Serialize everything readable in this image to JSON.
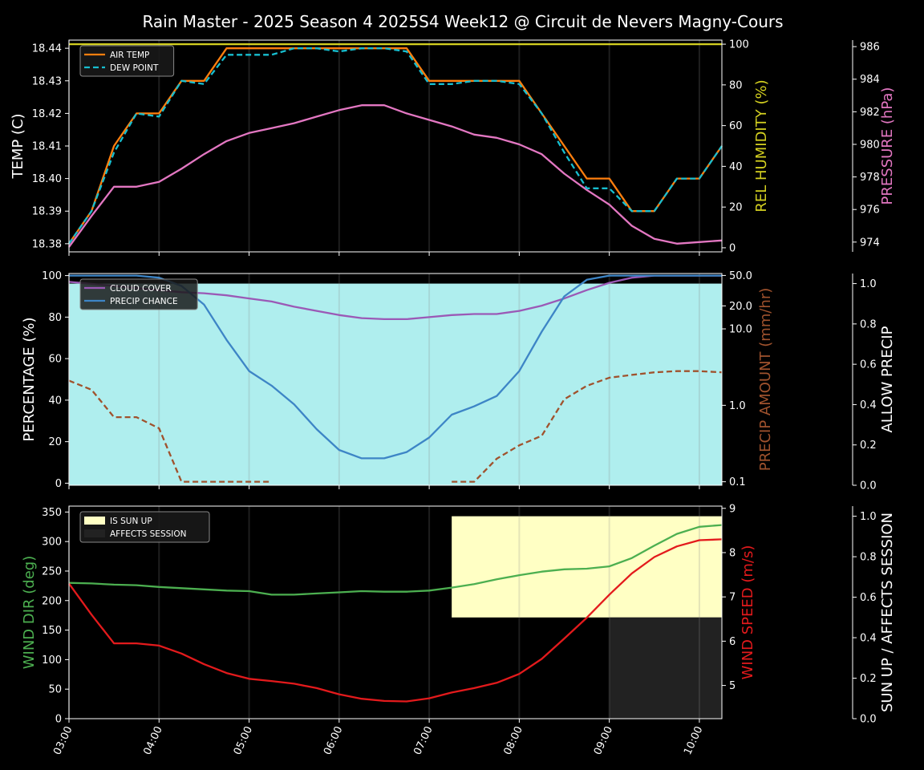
{
  "title": "Rain Master - 2025 Season 4 2025S4 Week12 @ Circuit de Nevers Magny-Cours",
  "time_ticks": [
    "03:00",
    "04:00",
    "05:00",
    "06:00",
    "07:00",
    "08:00",
    "09:00",
    "10:00"
  ],
  "chart_data": [
    {
      "type": "line",
      "x_hours": [
        3.0,
        3.25,
        3.5,
        3.75,
        4.0,
        4.25,
        4.5,
        4.75,
        5.0,
        5.25,
        5.5,
        5.75,
        6.0,
        6.25,
        6.5,
        6.75,
        7.0,
        7.25,
        7.5,
        7.75,
        8.0,
        8.25,
        8.5,
        8.75,
        9.0,
        9.25,
        9.5,
        9.75,
        10.0,
        10.25
      ],
      "axes": {
        "left": {
          "label": "TEMP (C)",
          "color": "#ffffff",
          "ylim": [
            18.3775,
            18.4425
          ],
          "ticks": [
            "18.38",
            "18.39",
            "18.40",
            "18.41",
            "18.42",
            "18.43",
            "18.44"
          ]
        },
        "right1": {
          "label": "REL HUMIDITY (%)",
          "color": "#d4d020",
          "ylim": [
            -2,
            102
          ],
          "ticks": [
            "0",
            "20",
            "40",
            "60",
            "80",
            "100"
          ]
        },
        "right2": {
          "label": "PRESSURE (hPa)",
          "color": "#e377c2",
          "ylim": [
            973.4,
            986.4
          ],
          "ticks": [
            "974",
            "976",
            "978",
            "980",
            "982",
            "984",
            "986"
          ]
        }
      },
      "legend": {
        "position": "upper-left",
        "entries": [
          "AIR TEMP",
          "DEW POINT"
        ]
      },
      "series": [
        {
          "name": "AIR TEMP",
          "axis": "left",
          "color": "#ff7f0e",
          "dash": false,
          "values": [
            18.38,
            18.39,
            18.41,
            18.42,
            18.42,
            18.43,
            18.43,
            18.44,
            18.44,
            18.44,
            18.44,
            18.44,
            18.44,
            18.44,
            18.44,
            18.44,
            18.43,
            18.43,
            18.43,
            18.43,
            18.43,
            18.42,
            18.41,
            18.4,
            18.4,
            18.39,
            18.39,
            18.4,
            18.4,
            18.41
          ]
        },
        {
          "name": "DEW POINT",
          "axis": "left",
          "color": "#17becf",
          "dash": true,
          "values": [
            18.38,
            18.39,
            18.408,
            18.42,
            18.419,
            18.43,
            18.429,
            18.438,
            18.438,
            18.438,
            18.44,
            18.44,
            18.439,
            18.44,
            18.44,
            18.439,
            18.429,
            18.429,
            18.43,
            18.43,
            18.429,
            18.42,
            18.408,
            18.397,
            18.397,
            18.39,
            18.39,
            18.4,
            18.4,
            18.41
          ]
        },
        {
          "name": "REL HUMIDITY",
          "axis": "right1",
          "color": "#d4d020",
          "dash": false,
          "values": [
            100,
            100,
            100,
            100,
            100,
            100,
            100,
            100,
            100,
            100,
            100,
            100,
            100,
            100,
            100,
            100,
            100,
            100,
            100,
            100,
            100,
            100,
            100,
            100,
            100,
            100,
            100,
            100,
            100,
            100
          ]
        },
        {
          "name": "PRESSURE",
          "axis": "right2",
          "color": "#e377c2",
          "dash": false,
          "values": [
            973.7,
            975.6,
            977.4,
            977.4,
            977.7,
            978.5,
            979.4,
            980.2,
            980.7,
            981.0,
            981.3,
            981.7,
            982.1,
            982.4,
            982.4,
            981.9,
            981.5,
            981.1,
            980.6,
            980.4,
            980.0,
            979.4,
            978.2,
            977.2,
            976.3,
            975.0,
            974.2,
            973.9,
            974.0,
            974.1
          ]
        }
      ]
    },
    {
      "type": "line",
      "x_hours": [
        3.0,
        3.25,
        3.5,
        3.75,
        4.0,
        4.25,
        4.5,
        4.75,
        5.0,
        5.25,
        5.5,
        5.75,
        6.0,
        6.25,
        6.5,
        6.75,
        7.0,
        7.25,
        7.5,
        7.75,
        8.0,
        8.25,
        8.5,
        8.75,
        9.0,
        9.25,
        9.5,
        9.75,
        10.0,
        10.25
      ],
      "background_fill": {
        "name": "ALLOW PRECIP",
        "value": 1.0,
        "color": "#afeeee"
      },
      "axes": {
        "left": {
          "label": "PERCENTAGE (%)",
          "color": "#ffffff",
          "ylim": [
            -1,
            101
          ],
          "ticks": [
            "0",
            "20",
            "40",
            "60",
            "80",
            "100"
          ]
        },
        "right1": {
          "label": "PRECIP AMOUNT (mm/hr)",
          "color": "#a0522d",
          "scale": "log",
          "ylim": [
            0.09,
            53
          ],
          "ticks": [
            "0.1",
            "1.0",
            "10.0",
            "20.0",
            "50.0"
          ]
        },
        "right2": {
          "label": "ALLOW PRECIP",
          "color": "#ffffff",
          "ylim": [
            0,
            1.05
          ],
          "ticks": [
            "0.0",
            "0.2",
            "0.4",
            "0.6",
            "0.8",
            "1.0"
          ]
        }
      },
      "legend": {
        "position": "upper-left",
        "entries": [
          "CLOUD COVER",
          "PRECIP CHANCE"
        ]
      },
      "series": [
        {
          "name": "CLOUD COVER",
          "axis": "left",
          "color": "#9b59b6",
          "dash": false,
          "values": [
            97,
            96,
            95,
            94,
            93,
            92,
            91.5,
            90.5,
            89,
            87.5,
            85,
            83,
            81,
            79.5,
            79,
            79,
            80,
            81,
            81.5,
            81.5,
            83,
            85.5,
            89,
            93,
            96.5,
            99,
            100,
            100,
            100,
            100
          ]
        },
        {
          "name": "PRECIP CHANCE",
          "axis": "left",
          "color": "#3d85c6",
          "dash": false,
          "values": [
            100,
            100,
            100,
            100,
            99,
            95,
            86,
            69,
            54,
            47,
            38,
            26,
            16,
            12,
            12,
            15,
            22,
            33,
            37,
            42,
            54,
            73,
            90,
            98,
            100,
            100,
            100,
            100,
            100,
            100
          ]
        },
        {
          "name": "PRECIP AMOUNT",
          "axis": "right1",
          "color": "#a0522d",
          "dash": true,
          "values": [
            2.1,
            1.6,
            0.7,
            0.7,
            0.5,
            0.1,
            0.1,
            0.1,
            0.1,
            0.1,
            null,
            null,
            null,
            null,
            null,
            null,
            null,
            0.1,
            0.1,
            0.2,
            0.3,
            0.4,
            1.2,
            1.8,
            2.3,
            2.5,
            2.7,
            2.8,
            2.8,
            2.7
          ]
        }
      ]
    },
    {
      "type": "line",
      "x_hours": [
        3.0,
        3.25,
        3.5,
        3.75,
        4.0,
        4.25,
        4.5,
        4.75,
        5.0,
        5.25,
        5.5,
        5.75,
        6.0,
        6.25,
        6.5,
        6.75,
        7.0,
        7.25,
        7.5,
        7.75,
        8.0,
        8.25,
        8.5,
        8.75,
        9.0,
        9.25,
        9.5,
        9.75,
        10.0,
        10.25
      ],
      "axes": {
        "left": {
          "label": "WIND DIR (deg)",
          "color": "#4caf50",
          "ylim": [
            0,
            360
          ],
          "ticks": [
            "0",
            "50",
            "100",
            "150",
            "200",
            "250",
            "300",
            "350"
          ]
        },
        "right1": {
          "label": "WIND SPEED (m/s)",
          "color": "#e31a1c",
          "ylim": [
            4.25,
            9.05
          ],
          "ticks": [
            "5",
            "6",
            "7",
            "8",
            "9"
          ]
        },
        "right2": {
          "label": "SUN UP / AFFECTS SESSION",
          "color": "#ffffff",
          "ylim": [
            0,
            1.05
          ],
          "ticks": [
            "0.0",
            "0.2",
            "0.4",
            "0.6",
            "0.8",
            "1.0"
          ]
        }
      },
      "legend": {
        "position": "upper-left",
        "entries": [
          "IS SUN UP",
          "AFFECTS SESSION"
        ]
      },
      "bands": [
        {
          "name": "IS SUN UP",
          "color": "#ffffc4",
          "start_hour": 7.25,
          "end_hour": 10.25,
          "bottom": 0.5,
          "top": 1.0
        },
        {
          "name": "AFFECTS SESSION",
          "color": "#222222",
          "start_hour": 9.0,
          "end_hour": 10.25,
          "bottom": 0.0,
          "top": 0.5
        }
      ],
      "series": [
        {
          "name": "WIND DIR",
          "axis": "left",
          "color": "#4caf50",
          "dash": false,
          "values": [
            230,
            229,
            227,
            226,
            223,
            221,
            219,
            217,
            216,
            210,
            210,
            212,
            214,
            216,
            215,
            215,
            217,
            222,
            228,
            236,
            243,
            249,
            253,
            254,
            258,
            272,
            293,
            313,
            325,
            328
          ]
        },
        {
          "name": "WIND SPEED",
          "axis": "right1",
          "color": "#e31a1c",
          "dash": false,
          "values": [
            7.3,
            6.6,
            5.95,
            5.95,
            5.9,
            5.72,
            5.48,
            5.28,
            5.15,
            5.1,
            5.04,
            4.94,
            4.8,
            4.7,
            4.65,
            4.64,
            4.71,
            4.84,
            4.94,
            5.06,
            5.26,
            5.6,
            6.06,
            6.53,
            7.05,
            7.53,
            7.9,
            8.14,
            8.28,
            8.3
          ]
        }
      ]
    }
  ]
}
